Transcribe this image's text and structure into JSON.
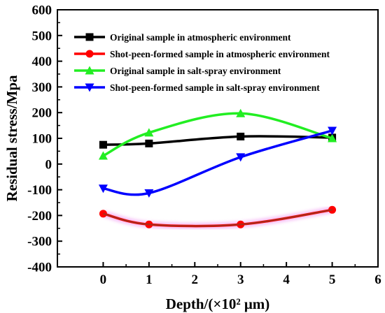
{
  "chart_data": {
    "type": "line",
    "title": "",
    "xlabel": "Depth/(×10² μm)",
    "ylabel": "Residual stress/Mpa",
    "xlim": [
      -1,
      6
    ],
    "ylim": [
      -400,
      600
    ],
    "xticks": [
      0,
      1,
      2,
      3,
      4,
      5,
      6
    ],
    "yticks": [
      -400,
      -300,
      -200,
      -100,
      0,
      100,
      200,
      300,
      400,
      500,
      600
    ],
    "grid": false,
    "legend_position": "top",
    "series": [
      {
        "name": "Original sample in atmospheric environment",
        "color": "#000000",
        "marker": "square",
        "x": [
          0,
          1,
          3,
          5
        ],
        "y": [
          75,
          80,
          107,
          103
        ]
      },
      {
        "name": "Shot-peen-formed sample in atmospheric environment",
        "color": "#ff0000",
        "marker": "circle",
        "x": [
          0,
          1,
          3,
          5
        ],
        "y": [
          -193,
          -235,
          -235,
          -178
        ]
      },
      {
        "name": "Original sample in salt-spray environment",
        "color": "#22ee22",
        "marker": "triangle-up",
        "x": [
          0,
          1,
          3,
          5
        ],
        "y": [
          32,
          122,
          197,
          100
        ]
      },
      {
        "name": "Shot-peen-formed sample in salt-spray environment",
        "color": "#0000ff",
        "marker": "triangle-down",
        "x": [
          0,
          1,
          3,
          5
        ],
        "y": [
          -95,
          -113,
          27,
          130
        ]
      }
    ]
  }
}
